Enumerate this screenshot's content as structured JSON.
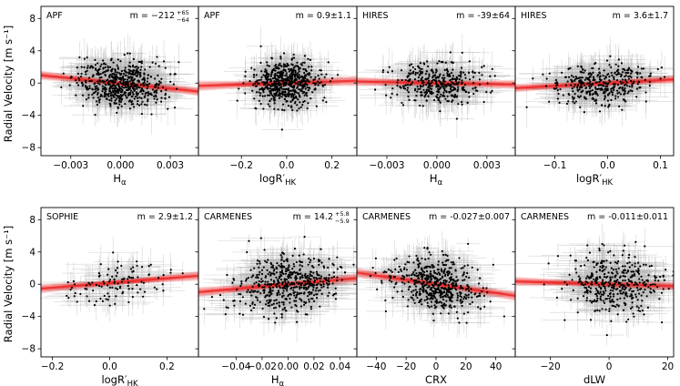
{
  "figure": {
    "ylabel": "Radial Velocity [m s⁻¹]",
    "yticks": [
      "8",
      "4",
      "0",
      "−4",
      "−8"
    ]
  },
  "chart_data": [
    {
      "type": "scatter",
      "instrument": "APF",
      "slope_text": "m = −212",
      "slope_sup": "+65",
      "slope_sub": "−64",
      "xlabel": "Hα",
      "xlabel_main": "H",
      "xlabel_sub": "α",
      "xlim": [
        -0.0048,
        0.0047
      ],
      "ylim": [
        -9,
        9.5
      ],
      "xticks": [
        -0.003,
        0.0,
        0.003
      ],
      "xtick_labels": [
        "−0.003",
        "0.000",
        "0.003"
      ],
      "yticks": [
        8,
        4,
        0,
        -4,
        -8
      ],
      "fit": {
        "intercept": -0.05,
        "slope": -212,
        "band_sigma_slope": 64
      },
      "points": {
        "n": 620,
        "x_mean": 0.0,
        "x_sd": 0.0013,
        "y_sd": 1.4
      },
      "row": 0,
      "col": 0
    },
    {
      "type": "scatter",
      "instrument": "APF",
      "slope_text": "m = 0.9±1.1",
      "xlabel": "logR′HK",
      "xlabel_main": "logR′",
      "xlabel_sub": "HK",
      "xlim": [
        -0.39,
        0.31
      ],
      "ylim": [
        -9,
        9.5
      ],
      "xticks": [
        -0.2,
        0.0,
        0.2
      ],
      "xtick_labels": [
        "−0.2",
        "0.0",
        "0.2"
      ],
      "yticks": [
        8,
        4,
        0,
        -4,
        -8
      ],
      "fit": {
        "intercept": 0.0,
        "slope": 0.9,
        "band_sigma_slope": 1.1
      },
      "points": {
        "n": 620,
        "x_mean": 0.0,
        "x_sd": 0.07,
        "y_sd": 1.4
      },
      "row": 0,
      "col": 1
    },
    {
      "type": "scatter",
      "instrument": "HIRES",
      "slope_text": "m = -39±64",
      "xlabel": "Hα",
      "xlabel_main": "H",
      "xlabel_sub": "α",
      "xlim": [
        -0.0048,
        0.0047
      ],
      "ylim": [
        -9,
        9.5
      ],
      "xticks": [
        -0.003,
        0.0,
        0.003
      ],
      "xtick_labels": [
        "−0.003",
        "0.000",
        "0.003"
      ],
      "yticks": [
        8,
        4,
        0,
        -4,
        -8
      ],
      "fit": {
        "intercept": 0.0,
        "slope": -39,
        "band_sigma_slope": 64
      },
      "points": {
        "n": 380,
        "x_mean": 0.0,
        "x_sd": 0.0013,
        "y_sd": 1.3
      },
      "row": 0,
      "col": 2
    },
    {
      "type": "scatter",
      "instrument": "HIRES",
      "slope_text": "m = 3.6±1.7",
      "xlabel": "logR′HK",
      "xlabel_main": "logR′",
      "xlabel_sub": "HK",
      "xlim": [
        -0.175,
        0.125
      ],
      "ylim": [
        -9,
        9.5
      ],
      "xticks": [
        -0.1,
        0.0,
        0.1
      ],
      "xtick_labels": [
        "−0.1",
        "0.0",
        "0.1"
      ],
      "yticks": [
        8,
        4,
        0,
        -4,
        -8
      ],
      "fit": {
        "intercept": 0.0,
        "slope": 3.6,
        "band_sigma_slope": 1.7
      },
      "points": {
        "n": 380,
        "x_mean": -0.01,
        "x_sd": 0.045,
        "y_sd": 1.3
      },
      "row": 0,
      "col": 3
    },
    {
      "type": "scatter",
      "instrument": "SOPHIE",
      "slope_text": "m = 2.9±1.2",
      "xlabel": "logR′HK",
      "xlabel_main": "logR′",
      "xlabel_sub": "HK",
      "xlim": [
        -0.24,
        0.31
      ],
      "ylim": [
        -9,
        9.5
      ],
      "xticks": [
        -0.2,
        0.0,
        0.2
      ],
      "xtick_labels": [
        "−0.2",
        "0.0",
        "0.2"
      ],
      "yticks": [
        8,
        4,
        0,
        -4,
        -8
      ],
      "fit": {
        "intercept": 0.15,
        "slope": 2.9,
        "band_sigma_slope": 1.2
      },
      "points": {
        "n": 110,
        "x_mean": 0.02,
        "x_sd": 0.09,
        "y_sd": 1.3
      },
      "row": 1,
      "col": 0
    },
    {
      "type": "scatter",
      "instrument": "CARMENES",
      "slope_text": "m = 14.2",
      "slope_sup": "+5.8",
      "slope_sub": "−5.9",
      "xlabel": "Hα",
      "xlabel_main": "H",
      "xlabel_sub": "α",
      "xlim": [
        -0.069,
        0.053
      ],
      "ylim": [
        -9,
        9.5
      ],
      "xticks": [
        -0.04,
        -0.02,
        0.0,
        0.02,
        0.04
      ],
      "xtick_labels": [
        "−0.04",
        "−0.02",
        "0.00",
        "0.02",
        "0.04"
      ],
      "yticks": [
        8,
        4,
        0,
        -4,
        -8
      ],
      "fit": {
        "intercept": 0.0,
        "slope": 14.2,
        "band_sigma_slope": 5.9
      },
      "points": {
        "n": 560,
        "x_mean": 0.0,
        "x_sd": 0.02,
        "y_sd": 1.7
      },
      "row": 1,
      "col": 1
    },
    {
      "type": "scatter",
      "instrument": "CARMENES",
      "slope_text": "m = -0.027±0.007",
      "xlabel": "CRX",
      "xlabel_main": "CRX",
      "xlabel_sub": "",
      "xlim": [
        -53,
        53
      ],
      "ylim": [
        -9,
        9.5
      ],
      "xticks": [
        -40,
        -20,
        0,
        20,
        40
      ],
      "xtick_labels": [
        "−40",
        "−20",
        "0",
        "20",
        "40"
      ],
      "yticks": [
        8,
        4,
        0,
        -4,
        -8
      ],
      "fit": {
        "intercept": 0.0,
        "slope": -0.027,
        "band_sigma_slope": 0.007
      },
      "points": {
        "n": 560,
        "x_mean": 0.0,
        "x_sd": 14,
        "y_sd": 1.6
      },
      "row": 1,
      "col": 2
    },
    {
      "type": "scatter",
      "instrument": "CARMENES",
      "slope_text": "m = -0.011±0.011",
      "xlabel": "dLW",
      "xlabel_main": "dLW",
      "xlabel_sub": "",
      "xlim": [
        -32,
        22
      ],
      "ylim": [
        -9,
        9.5
      ],
      "xticks": [
        -20,
        0,
        20
      ],
      "xtick_labels": [
        "−20",
        "0",
        "20"
      ],
      "yticks": [
        8,
        4,
        0,
        -4,
        -8
      ],
      "fit": {
        "intercept": 0.0,
        "slope": -0.011,
        "band_sigma_slope": 0.011
      },
      "points": {
        "n": 420,
        "x_mean": 2,
        "x_sd": 8,
        "y_sd": 1.8
      },
      "row": 1,
      "col": 3
    }
  ],
  "colors": {
    "fit": "#ee2222",
    "points": "#000000",
    "errorbars": "#b5b5b5"
  }
}
